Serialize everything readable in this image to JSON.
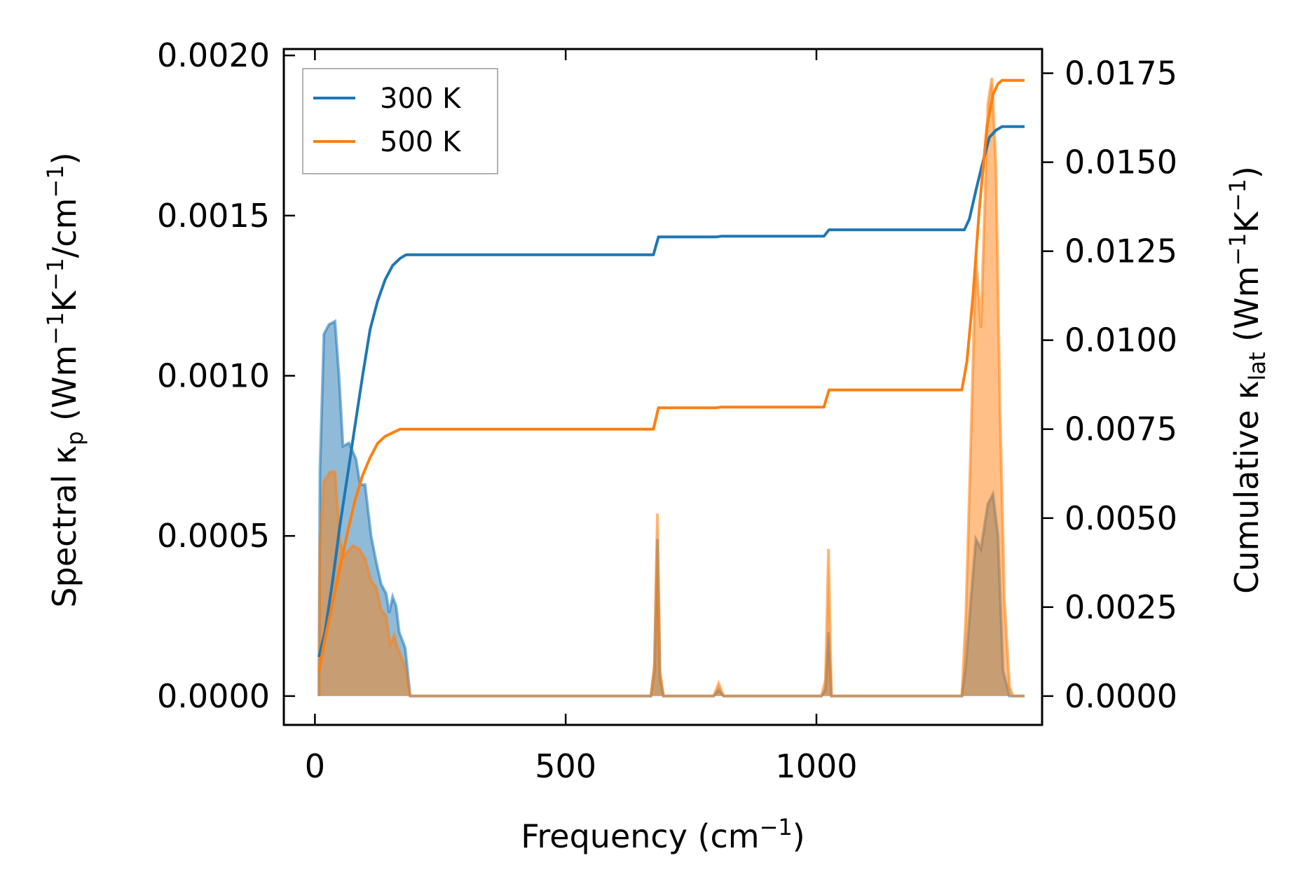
{
  "chart_data": {
    "type": "line",
    "xlabel": {
      "text": "Frequency (cm",
      "sup": "−1",
      "end": ")"
    },
    "ylabel_left": {
      "parts": [
        {
          "t": "Spectral κ"
        },
        {
          "t": "p",
          "sub": true
        },
        {
          "t": " (Wm"
        },
        {
          "t": "−1",
          "sup": true
        },
        {
          "t": "K"
        },
        {
          "t": "−1",
          "sup": true
        },
        {
          "t": "/cm"
        },
        {
          "t": "−1",
          "sup": true
        },
        {
          "t": ")"
        }
      ]
    },
    "ylabel_right": {
      "parts": [
        {
          "t": "Cumulative κ"
        },
        {
          "t": "lat",
          "sub": true
        },
        {
          "t": " (Wm"
        },
        {
          "t": "−1",
          "sup": true
        },
        {
          "t": "K"
        },
        {
          "t": "−1",
          "sup": true
        },
        {
          "t": ")"
        }
      ]
    },
    "xlim": [
      -62,
      1450
    ],
    "ylim_left": [
      -9e-05,
      0.00202
    ],
    "ylim_right": [
      -0.00081,
      0.01818
    ],
    "x_ticks": [
      0,
      500,
      1000
    ],
    "x_tick_labels": [
      "0",
      "500",
      "1000"
    ],
    "y_left_ticks": [
      0,
      0.0005,
      0.001,
      0.0015,
      0.002
    ],
    "y_left_tick_labels": [
      "0.0000",
      "0.0005",
      "0.0010",
      "0.0015",
      "0.0020"
    ],
    "y_right_ticks": [
      0,
      0.0025,
      0.005,
      0.0075,
      0.01,
      0.0125,
      0.015,
      0.0175
    ],
    "y_right_tick_labels": [
      "0.0000",
      "0.0025",
      "0.0050",
      "0.0075",
      "0.0100",
      "0.0125",
      "0.0150",
      "0.0175"
    ],
    "legend_position": "top-left",
    "grid": false,
    "series": [
      {
        "name": "300 K",
        "color": "#1f77b4",
        "spectral": [
          [
            8,
            0
          ],
          [
            10,
            0.0007
          ],
          [
            18,
            0.00113
          ],
          [
            28,
            0.00116
          ],
          [
            40,
            0.00117
          ],
          [
            48,
            0.001
          ],
          [
            56,
            0.00078
          ],
          [
            68,
            0.00079
          ],
          [
            82,
            0.00074
          ],
          [
            90,
            0.00066
          ],
          [
            100,
            0.00066
          ],
          [
            112,
            0.0005
          ],
          [
            122,
            0.00042
          ],
          [
            132,
            0.00035
          ],
          [
            142,
            0.00032
          ],
          [
            148,
            0.00026
          ],
          [
            155,
            0.00031
          ],
          [
            162,
            0.00028
          ],
          [
            168,
            0.0002
          ],
          [
            180,
            0.00015
          ],
          [
            190,
            0
          ],
          [
            670,
            0
          ],
          [
            677,
            8e-05
          ],
          [
            683,
            0.00049
          ],
          [
            688,
            6e-05
          ],
          [
            695,
            0
          ],
          [
            795,
            0
          ],
          [
            805,
            2e-05
          ],
          [
            815,
            0
          ],
          [
            1010,
            0
          ],
          [
            1018,
            2e-05
          ],
          [
            1024,
            0.0002
          ],
          [
            1030,
            0
          ],
          [
            1290,
            0
          ],
          [
            1298,
            0.0001
          ],
          [
            1308,
            0.0003
          ],
          [
            1318,
            0.00049
          ],
          [
            1328,
            0.00046
          ],
          [
            1342,
            0.0006
          ],
          [
            1352,
            0.00063
          ],
          [
            1362,
            0.0005
          ],
          [
            1372,
            8e-05
          ],
          [
            1385,
            0
          ],
          [
            1415,
            0
          ]
        ],
        "cumulative": [
          [
            8,
            0.0011
          ],
          [
            20,
            0.0018
          ],
          [
            35,
            0.0032
          ],
          [
            50,
            0.0048
          ],
          [
            65,
            0.0062
          ],
          [
            80,
            0.0076
          ],
          [
            95,
            0.009
          ],
          [
            110,
            0.0103
          ],
          [
            125,
            0.0111
          ],
          [
            140,
            0.0117
          ],
          [
            155,
            0.0121
          ],
          [
            170,
            0.0123
          ],
          [
            182,
            0.0124
          ],
          [
            675,
            0.0124
          ],
          [
            685,
            0.0129
          ],
          [
            800,
            0.0129
          ],
          [
            810,
            0.01292
          ],
          [
            1015,
            0.01292
          ],
          [
            1025,
            0.0131
          ],
          [
            1295,
            0.0131
          ],
          [
            1305,
            0.0134
          ],
          [
            1318,
            0.0142
          ],
          [
            1330,
            0.0149
          ],
          [
            1345,
            0.0157
          ],
          [
            1358,
            0.0159
          ],
          [
            1370,
            0.016
          ],
          [
            1415,
            0.016
          ]
        ]
      },
      {
        "name": "500 K",
        "color": "#ff7f0e",
        "spectral": [
          [
            8,
            0
          ],
          [
            10,
            0.00048
          ],
          [
            18,
            0.00067
          ],
          [
            30,
            0.0007
          ],
          [
            40,
            0.0007
          ],
          [
            50,
            0.00048
          ],
          [
            60,
            0.00044
          ],
          [
            75,
            0.00047
          ],
          [
            88,
            0.00046
          ],
          [
            100,
            0.00043
          ],
          [
            112,
            0.00036
          ],
          [
            122,
            0.00034
          ],
          [
            132,
            0.00027
          ],
          [
            142,
            0.00025
          ],
          [
            150,
            0.00016
          ],
          [
            158,
            0.00019
          ],
          [
            165,
            0.00015
          ],
          [
            178,
            0.0001
          ],
          [
            190,
            0
          ],
          [
            670,
            0
          ],
          [
            677,
            0.0001
          ],
          [
            683,
            0.00057
          ],
          [
            688,
            8e-05
          ],
          [
            695,
            0
          ],
          [
            795,
            0
          ],
          [
            805,
            4e-05
          ],
          [
            815,
            0
          ],
          [
            1010,
            0
          ],
          [
            1018,
            5e-05
          ],
          [
            1024,
            0.00046
          ],
          [
            1030,
            0
          ],
          [
            1290,
            0
          ],
          [
            1298,
            0.00025
          ],
          [
            1308,
            0.0008
          ],
          [
            1318,
            0.00137
          ],
          [
            1328,
            0.00115
          ],
          [
            1342,
            0.00185
          ],
          [
            1350,
            0.00193
          ],
          [
            1358,
            0.00165
          ],
          [
            1366,
            0.0009
          ],
          [
            1375,
            0.0003
          ],
          [
            1385,
            3e-05
          ],
          [
            1392,
            0
          ],
          [
            1415,
            0
          ]
        ],
        "cumulative": [
          [
            8,
            0.0007
          ],
          [
            20,
            0.0016
          ],
          [
            35,
            0.0026
          ],
          [
            50,
            0.0036
          ],
          [
            65,
            0.0046
          ],
          [
            80,
            0.0055
          ],
          [
            95,
            0.0062
          ],
          [
            110,
            0.0067
          ],
          [
            125,
            0.0071
          ],
          [
            140,
            0.0073
          ],
          [
            155,
            0.0074
          ],
          [
            170,
            0.0075
          ],
          [
            182,
            0.0075
          ],
          [
            675,
            0.0075
          ],
          [
            685,
            0.0081
          ],
          [
            800,
            0.0081
          ],
          [
            810,
            0.00812
          ],
          [
            1015,
            0.00812
          ],
          [
            1025,
            0.0086
          ],
          [
            1290,
            0.0086
          ],
          [
            1300,
            0.0094
          ],
          [
            1312,
            0.0112
          ],
          [
            1325,
            0.0137
          ],
          [
            1340,
            0.016
          ],
          [
            1352,
            0.0169
          ],
          [
            1362,
            0.0172
          ],
          [
            1370,
            0.0173
          ],
          [
            1415,
            0.0173
          ]
        ]
      }
    ]
  }
}
